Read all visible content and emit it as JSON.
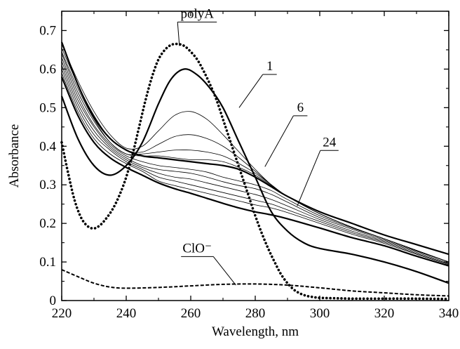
{
  "chart_data": {
    "type": "line",
    "xlabel": "Wavelength, nm",
    "ylabel": "Absorbance",
    "xlim": [
      220,
      340
    ],
    "ylim": [
      0,
      0.75
    ],
    "x_ticks": [
      220,
      240,
      260,
      280,
      300,
      320,
      340
    ],
    "y_ticks": [
      0,
      0.1,
      0.2,
      0.3,
      0.4,
      0.5,
      0.6,
      0.7
    ],
    "x_tick_labels": [
      "220",
      "240",
      "260",
      "280",
      "300",
      "320",
      "340"
    ],
    "y_tick_labels": [
      "0",
      "0.1",
      "0.2",
      "0.3",
      "0.4",
      "0.5",
      "0.6",
      "0.7"
    ],
    "grid": false,
    "annotations": [
      {
        "text": "polyA",
        "target": "polyA",
        "at": [
          262,
          0.733
        ],
        "arrow_to": [
          256.5,
          0.66
        ]
      },
      {
        "text": "1",
        "target": "1",
        "at": [
          284.5,
          0.597
        ],
        "arrow_to": [
          275,
          0.5
        ]
      },
      {
        "text": "6",
        "target": "6",
        "at": [
          294,
          0.49
        ],
        "arrow_to": [
          283,
          0.347
        ]
      },
      {
        "text": "24",
        "target": "24",
        "at": [
          303,
          0.4
        ],
        "arrow_to": [
          293,
          0.245
        ]
      },
      {
        "text": "ClO⁻",
        "target": "ClO-",
        "at": [
          262,
          0.125
        ],
        "arrow_to": [
          274,
          0.04
        ]
      }
    ],
    "series": [
      {
        "id": "polyA",
        "style": "dotted-thick",
        "color": "#000000",
        "x": [
          220,
          222,
          224,
          226,
          228,
          230,
          232,
          234,
          236,
          238,
          240,
          242,
          244,
          246,
          248,
          250,
          252,
          254,
          256,
          258,
          260,
          262,
          264,
          266,
          268,
          270,
          272,
          274,
          276,
          278,
          280,
          282,
          284,
          286,
          288,
          290,
          292,
          294,
          296,
          298,
          300,
          305,
          310,
          320,
          330,
          340
        ],
        "y": [
          0.41,
          0.33,
          0.26,
          0.215,
          0.193,
          0.187,
          0.196,
          0.215,
          0.24,
          0.275,
          0.32,
          0.38,
          0.45,
          0.52,
          0.58,
          0.625,
          0.65,
          0.663,
          0.665,
          0.66,
          0.645,
          0.625,
          0.595,
          0.56,
          0.52,
          0.47,
          0.42,
          0.37,
          0.32,
          0.27,
          0.22,
          0.175,
          0.135,
          0.1,
          0.068,
          0.045,
          0.028,
          0.018,
          0.012,
          0.009,
          0.007,
          0.006,
          0.005,
          0.005,
          0.005,
          0.004
        ]
      },
      {
        "id": "1",
        "style": "solid-thick",
        "color": "#000000",
        "x": [
          220,
          225,
          230,
          235,
          240,
          245,
          250,
          254,
          258,
          262,
          266,
          270,
          275,
          280,
          285,
          290,
          295,
          300,
          310,
          320,
          330,
          340
        ],
        "y": [
          0.53,
          0.42,
          0.35,
          0.325,
          0.35,
          0.41,
          0.51,
          0.575,
          0.6,
          0.585,
          0.55,
          0.5,
          0.41,
          0.32,
          0.23,
          0.18,
          0.15,
          0.135,
          0.12,
          0.1,
          0.075,
          0.045
        ]
      },
      {
        "id": "2",
        "style": "solid-thin",
        "color": "#000000",
        "x": [
          220,
          225,
          230,
          235,
          240,
          245,
          250,
          255,
          260,
          265,
          270,
          275,
          280,
          285,
          290,
          300,
          310,
          320,
          330,
          340
        ],
        "y": [
          0.665,
          0.57,
          0.49,
          0.43,
          0.395,
          0.4,
          0.44,
          0.48,
          0.49,
          0.47,
          0.43,
          0.385,
          0.34,
          0.3,
          0.27,
          0.225,
          0.19,
          0.16,
          0.13,
          0.1
        ]
      },
      {
        "id": "3",
        "style": "solid-thin",
        "color": "#000000",
        "x": [
          220,
          225,
          230,
          235,
          240,
          245,
          250,
          255,
          260,
          265,
          270,
          275,
          280,
          285,
          290,
          300,
          310,
          320,
          330,
          340
        ],
        "y": [
          0.655,
          0.56,
          0.48,
          0.42,
          0.39,
          0.385,
          0.405,
          0.425,
          0.43,
          0.42,
          0.4,
          0.37,
          0.335,
          0.3,
          0.27,
          0.225,
          0.19,
          0.16,
          0.13,
          0.1
        ]
      },
      {
        "id": "4",
        "style": "solid-thin",
        "color": "#000000",
        "x": [
          220,
          225,
          230,
          235,
          240,
          245,
          250,
          255,
          260,
          265,
          270,
          275,
          280,
          285,
          290,
          300,
          310,
          320,
          330,
          340
        ],
        "y": [
          0.645,
          0.55,
          0.47,
          0.41,
          0.38,
          0.38,
          0.385,
          0.39,
          0.39,
          0.385,
          0.375,
          0.355,
          0.33,
          0.3,
          0.27,
          0.225,
          0.19,
          0.16,
          0.13,
          0.1
        ]
      },
      {
        "id": "5",
        "style": "solid-thin",
        "color": "#000000",
        "x": [
          220,
          225,
          230,
          235,
          240,
          245,
          250,
          255,
          260,
          265,
          270,
          275,
          280,
          285,
          290,
          300,
          310,
          320,
          330,
          340
        ],
        "y": [
          0.64,
          0.54,
          0.465,
          0.41,
          0.38,
          0.375,
          0.375,
          0.37,
          0.365,
          0.365,
          0.36,
          0.345,
          0.325,
          0.298,
          0.27,
          0.225,
          0.19,
          0.16,
          0.13,
          0.1
        ]
      },
      {
        "id": "6",
        "style": "solid-thick",
        "color": "#000000",
        "x": [
          220,
          225,
          230,
          235,
          240,
          245,
          250,
          255,
          260,
          265,
          270,
          275,
          280,
          285,
          290,
          300,
          310,
          320,
          330,
          340
        ],
        "y": [
          0.67,
          0.56,
          0.475,
          0.42,
          0.39,
          0.375,
          0.37,
          0.365,
          0.36,
          0.355,
          0.35,
          0.34,
          0.32,
          0.295,
          0.27,
          0.23,
          0.2,
          0.17,
          0.145,
          0.12
        ]
      },
      {
        "id": "7",
        "style": "solid-thin",
        "color": "#000000",
        "x": [
          220,
          225,
          230,
          235,
          240,
          245,
          250,
          255,
          260,
          265,
          270,
          275,
          280,
          285,
          290,
          300,
          310,
          320,
          330,
          340
        ],
        "y": [
          0.63,
          0.53,
          0.455,
          0.405,
          0.375,
          0.36,
          0.35,
          0.345,
          0.34,
          0.333,
          0.32,
          0.31,
          0.3,
          0.285,
          0.262,
          0.22,
          0.188,
          0.16,
          0.13,
          0.1
        ]
      },
      {
        "id": "8",
        "style": "solid-thin",
        "color": "#000000",
        "x": [
          220,
          225,
          230,
          235,
          240,
          245,
          250,
          255,
          260,
          265,
          270,
          275,
          280,
          285,
          290,
          300,
          310,
          320,
          330,
          340
        ],
        "y": [
          0.62,
          0.52,
          0.45,
          0.4,
          0.37,
          0.35,
          0.34,
          0.335,
          0.33,
          0.32,
          0.308,
          0.298,
          0.29,
          0.275,
          0.255,
          0.215,
          0.185,
          0.157,
          0.128,
          0.1
        ]
      },
      {
        "id": "9",
        "style": "solid-thin",
        "color": "#000000",
        "x": [
          220,
          225,
          230,
          235,
          240,
          245,
          250,
          255,
          260,
          265,
          270,
          275,
          280,
          285,
          290,
          300,
          310,
          320,
          330,
          340
        ],
        "y": [
          0.61,
          0.51,
          0.44,
          0.395,
          0.365,
          0.345,
          0.33,
          0.32,
          0.315,
          0.305,
          0.295,
          0.285,
          0.275,
          0.262,
          0.245,
          0.21,
          0.18,
          0.154,
          0.125,
          0.097
        ]
      },
      {
        "id": "10",
        "style": "solid-thin",
        "color": "#000000",
        "x": [
          220,
          225,
          230,
          235,
          240,
          245,
          250,
          255,
          260,
          265,
          270,
          275,
          280,
          285,
          290,
          300,
          310,
          320,
          330,
          340
        ],
        "y": [
          0.6,
          0.5,
          0.43,
          0.39,
          0.36,
          0.34,
          0.32,
          0.31,
          0.3,
          0.29,
          0.28,
          0.27,
          0.26,
          0.25,
          0.235,
          0.205,
          0.176,
          0.151,
          0.122,
          0.095
        ]
      },
      {
        "id": "11",
        "style": "solid-thin",
        "color": "#000000",
        "x": [
          220,
          225,
          230,
          235,
          240,
          245,
          250,
          255,
          260,
          265,
          270,
          275,
          280,
          285,
          290,
          300,
          310,
          320,
          330,
          340
        ],
        "y": [
          0.59,
          0.49,
          0.42,
          0.38,
          0.355,
          0.335,
          0.31,
          0.298,
          0.288,
          0.278,
          0.268,
          0.258,
          0.248,
          0.24,
          0.228,
          0.2,
          0.172,
          0.148,
          0.12,
          0.093
        ]
      },
      {
        "id": "24",
        "style": "solid-thick",
        "color": "#000000",
        "x": [
          220,
          225,
          230,
          235,
          240,
          245,
          250,
          255,
          260,
          265,
          270,
          275,
          280,
          285,
          290,
          300,
          310,
          320,
          330,
          340
        ],
        "y": [
          0.58,
          0.48,
          0.41,
          0.37,
          0.345,
          0.325,
          0.305,
          0.29,
          0.278,
          0.265,
          0.252,
          0.24,
          0.23,
          0.222,
          0.212,
          0.188,
          0.163,
          0.142,
          0.115,
          0.09
        ]
      },
      {
        "id": "ClO-",
        "style": "dashed-thick",
        "color": "#000000",
        "x": [
          220,
          225,
          230,
          235,
          240,
          250,
          260,
          270,
          280,
          290,
          300,
          310,
          320,
          330,
          340
        ],
        "y": [
          0.08,
          0.062,
          0.045,
          0.035,
          0.032,
          0.034,
          0.038,
          0.042,
          0.043,
          0.04,
          0.033,
          0.025,
          0.02,
          0.015,
          0.012
        ]
      }
    ]
  }
}
